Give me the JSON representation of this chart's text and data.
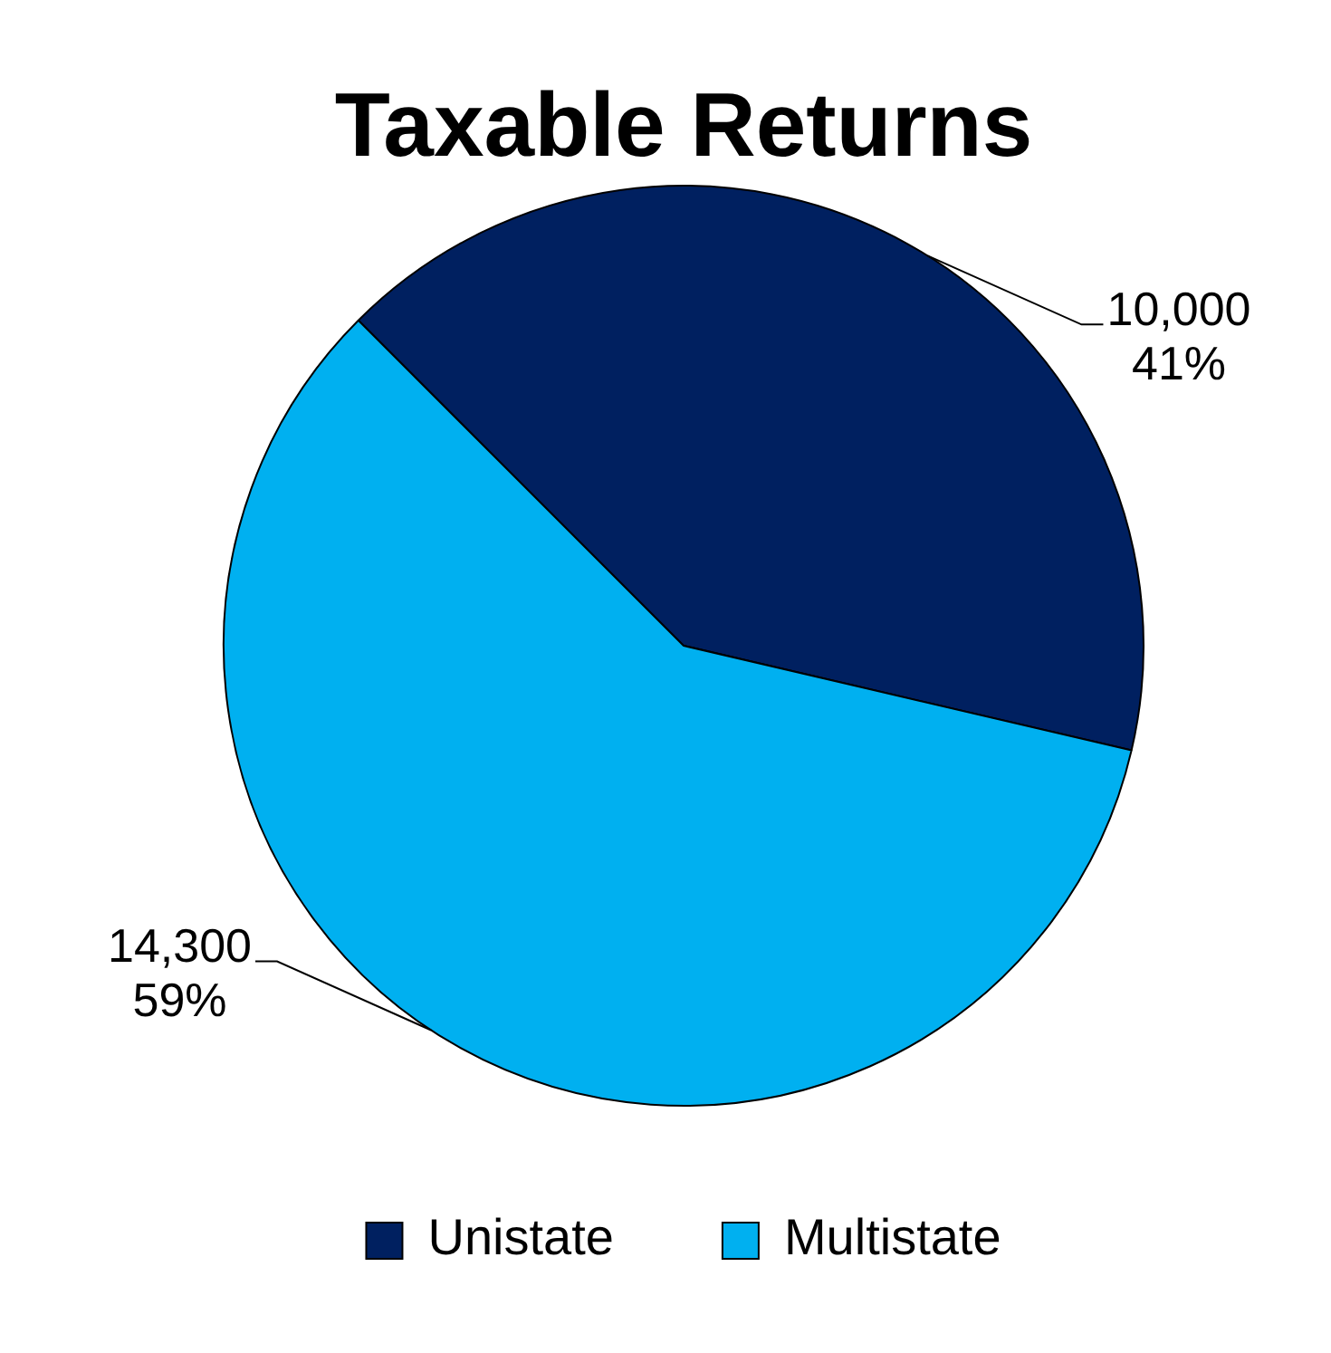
{
  "chart_data": {
    "type": "pie",
    "title": "Taxable Returns",
    "categories": [
      "Unistate",
      "Multistate"
    ],
    "values": [
      10000,
      14300
    ],
    "colors": [
      "#002060",
      "#00b0f0"
    ],
    "value_labels": [
      "10,000\n41%",
      "14,300\n59%"
    ],
    "legend": "bottom"
  }
}
